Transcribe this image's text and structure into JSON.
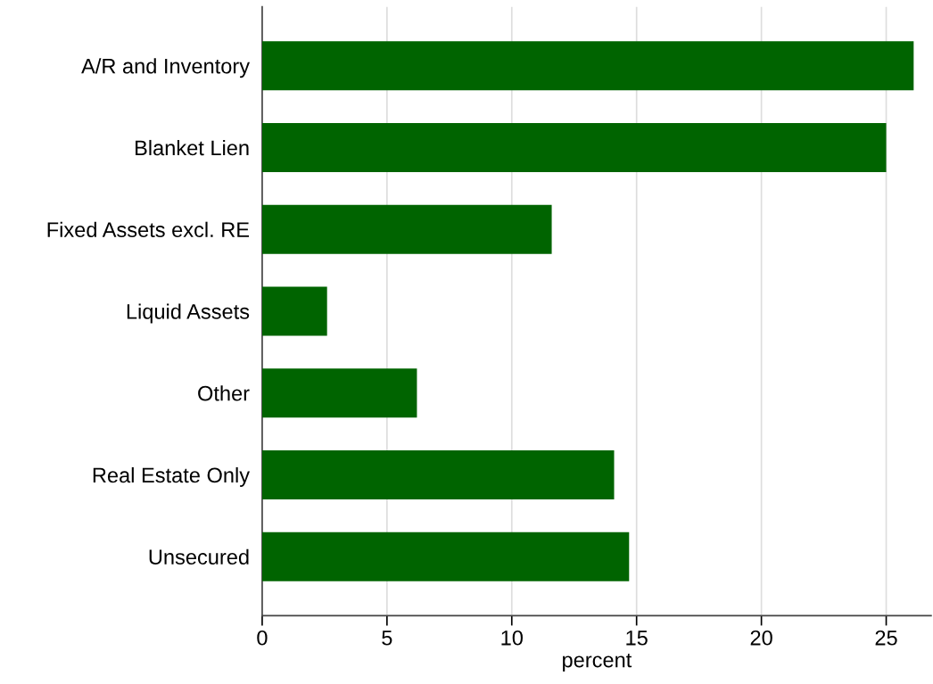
{
  "chart_data": {
    "type": "bar",
    "orientation": "horizontal",
    "xlabel": "percent",
    "categories": [
      "A/R and Inventory",
      "Blanket Lien",
      "Fixed Assets excl. RE",
      "Liquid Assets",
      "Other",
      "Real Estate Only",
      "Unsecured"
    ],
    "values": [
      26.1,
      25.0,
      11.6,
      2.6,
      6.2,
      14.1,
      14.7
    ],
    "color": "#006400",
    "xlim": [
      0,
      26.8
    ],
    "xticks": [
      0,
      5,
      10,
      15,
      20,
      25
    ],
    "grid": "x",
    "legend": false
  }
}
